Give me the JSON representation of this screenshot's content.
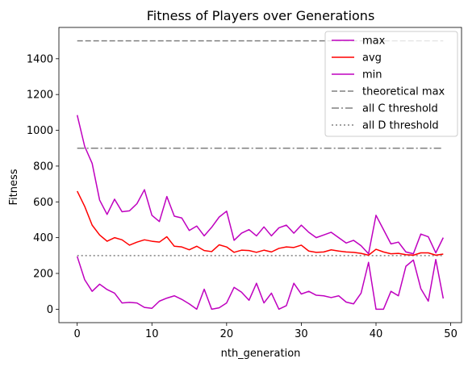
{
  "chart_data": {
    "type": "line",
    "title": "Fitness of Players over Generations",
    "xlabel": "nth_generation",
    "ylabel": "Fitness",
    "xlim": [
      -2.45,
      51.45
    ],
    "ylim": [
      -75,
      1575
    ],
    "xticks": [
      0,
      10,
      20,
      30,
      40,
      50
    ],
    "yticks": [
      0,
      200,
      400,
      600,
      800,
      1000,
      1200,
      1400
    ],
    "grid": false,
    "legend_position": "top-right",
    "x": [
      0,
      1,
      2,
      3,
      4,
      5,
      6,
      7,
      8,
      9,
      10,
      11,
      12,
      13,
      14,
      15,
      16,
      17,
      18,
      19,
      20,
      21,
      22,
      23,
      24,
      25,
      26,
      27,
      28,
      29,
      30,
      31,
      32,
      33,
      34,
      35,
      36,
      37,
      38,
      39,
      40,
      41,
      42,
      43,
      44,
      45,
      46,
      47,
      48,
      49
    ],
    "series": [
      {
        "name": "max",
        "color": "#bf00bf",
        "style": "solid",
        "values": [
          1085,
          910,
          815,
          610,
          530,
          615,
          545,
          550,
          590,
          668,
          525,
          490,
          630,
          520,
          510,
          440,
          465,
          410,
          458,
          515,
          548,
          385,
          425,
          445,
          410,
          460,
          410,
          455,
          470,
          425,
          470,
          430,
          400,
          415,
          430,
          400,
          370,
          385,
          355,
          310,
          525,
          445,
          365,
          375,
          320,
          310,
          420,
          405,
          315,
          400
        ]
      },
      {
        "name": "avg",
        "color": "#ff0000",
        "style": "solid",
        "values": [
          660,
          575,
          470,
          415,
          380,
          400,
          388,
          358,
          375,
          388,
          380,
          375,
          405,
          352,
          348,
          332,
          352,
          328,
          322,
          360,
          348,
          318,
          330,
          328,
          318,
          330,
          320,
          340,
          348,
          345,
          358,
          325,
          318,
          320,
          332,
          325,
          320,
          318,
          312,
          302,
          335,
          320,
          310,
          312,
          305,
          302,
          315,
          315,
          302,
          308
        ]
      },
      {
        "name": "min",
        "color": "#bf00bf",
        "style": "solid",
        "values": [
          295,
          165,
          100,
          140,
          110,
          90,
          35,
          38,
          35,
          10,
          5,
          45,
          62,
          75,
          55,
          30,
          0,
          112,
          0,
          8,
          35,
          122,
          95,
          50,
          145,
          35,
          90,
          0,
          20,
          145,
          85,
          100,
          78,
          75,
          65,
          75,
          40,
          30,
          90,
          262,
          0,
          0,
          100,
          75,
          240,
          275,
          115,
          45,
          278,
          60
        ]
      }
    ],
    "reference_lines": [
      {
        "name": "theoretical max",
        "y": 1500,
        "color": "#808080",
        "style": "dashed"
      },
      {
        "name": "all C threshold",
        "y": 900,
        "color": "#808080",
        "style": "dashdot"
      },
      {
        "name": "all D threshold",
        "y": 300,
        "color": "#808080",
        "style": "dotted"
      }
    ]
  }
}
